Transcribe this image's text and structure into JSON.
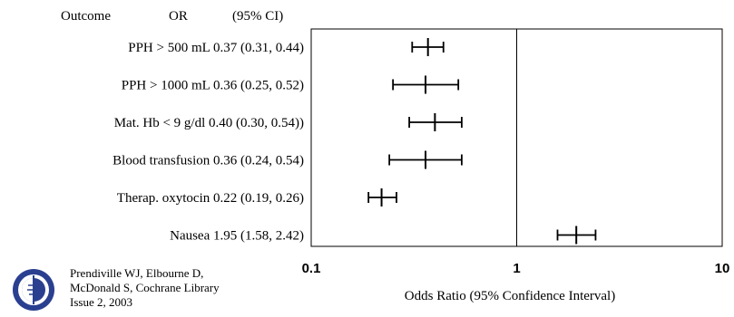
{
  "chart_data": {
    "type": "forest",
    "header": {
      "outcome": "Outcome",
      "or": "OR",
      "ci": "(95% CI)"
    },
    "rows": [
      {
        "label": "PPH > 500 mL 0.37 (0.31, 0.44)",
        "or": 0.37,
        "lower": 0.31,
        "upper": 0.44
      },
      {
        "label": "PPH > 1000 mL 0.36 (0.25, 0.52)",
        "or": 0.36,
        "lower": 0.25,
        "upper": 0.52
      },
      {
        "label": "Mat. Hb < 9 g/dl 0.40 (0.30, 0.54))",
        "or": 0.4,
        "lower": 0.3,
        "upper": 0.54
      },
      {
        "label": "Blood transfusion 0.36 (0.24, 0.54)",
        "or": 0.36,
        "lower": 0.24,
        "upper": 0.54
      },
      {
        "label": "Therap. oxytocin 0.22 (0.19, 0.26)",
        "or": 0.22,
        "lower": 0.19,
        "upper": 0.26
      },
      {
        "label": "Nausea 1.95 (1.58, 2.42)",
        "or": 1.95,
        "lower": 1.58,
        "upper": 2.42
      }
    ],
    "x_scale": "log",
    "xlim": [
      0.1,
      10
    ],
    "x_ticks": [
      "0.1",
      "1",
      "10"
    ],
    "reference_line": 1,
    "xlabel": "Odds Ratio (95% Confidence Interval)"
  },
  "citation": {
    "line1": "Prendiville WJ, Elbourne D,",
    "line2": "McDonald S, Cochrane Library",
    "line3": "Issue 2, 2003"
  },
  "logo_icon": "cochrane-logo-icon"
}
